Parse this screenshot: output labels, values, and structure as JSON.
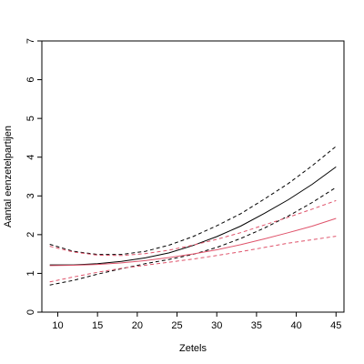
{
  "chart_data": {
    "type": "line",
    "title": "",
    "xlabel": "Zetels",
    "ylabel": "Aantal eenzetelpartijen",
    "xlim": [
      8,
      46
    ],
    "ylim": [
      0,
      7
    ],
    "x_ticks": [
      10,
      15,
      20,
      25,
      30,
      35,
      40,
      45
    ],
    "y_ticks": [
      0,
      1,
      2,
      3,
      4,
      5,
      6,
      7
    ],
    "grid": false,
    "legend": "none",
    "series": [
      {
        "color": "#000000",
        "style": "solid",
        "x": [
          9,
          12,
          15,
          18,
          21,
          24,
          27,
          30,
          33,
          36,
          39,
          42,
          45
        ],
        "y": [
          1.22,
          1.22,
          1.25,
          1.31,
          1.4,
          1.53,
          1.72,
          1.95,
          2.22,
          2.55,
          2.9,
          3.3,
          3.75
        ]
      },
      {
        "color": "#000000",
        "style": "dashed",
        "x": [
          9,
          12,
          15,
          18,
          21,
          24,
          27,
          30,
          33,
          36,
          39,
          42,
          45
        ],
        "y": [
          1.75,
          1.57,
          1.49,
          1.49,
          1.57,
          1.73,
          1.95,
          2.23,
          2.54,
          2.92,
          3.32,
          3.78,
          4.28
        ]
      },
      {
        "color": "#000000",
        "style": "dashed",
        "x": [
          9,
          12,
          15,
          18,
          21,
          24,
          27,
          30,
          33,
          36,
          39,
          42,
          45
        ],
        "y": [
          0.7,
          0.82,
          0.98,
          1.12,
          1.25,
          1.36,
          1.49,
          1.67,
          1.9,
          2.17,
          2.48,
          2.83,
          3.22
        ]
      },
      {
        "color": "#df536b",
        "style": "solid",
        "x": [
          9,
          12,
          15,
          18,
          21,
          24,
          27,
          30,
          33,
          36,
          39,
          42,
          45
        ],
        "y": [
          1.2,
          1.21,
          1.23,
          1.27,
          1.33,
          1.41,
          1.5,
          1.61,
          1.74,
          1.89,
          2.05,
          2.22,
          2.42
        ]
      },
      {
        "color": "#df536b",
        "style": "dashed",
        "x": [
          9,
          12,
          15,
          18,
          21,
          24,
          27,
          30,
          33,
          36,
          39,
          42,
          45
        ],
        "y": [
          1.7,
          1.55,
          1.47,
          1.46,
          1.51,
          1.6,
          1.73,
          1.88,
          2.05,
          2.25,
          2.45,
          2.66,
          2.88
        ]
      },
      {
        "color": "#df536b",
        "style": "dashed",
        "x": [
          9,
          12,
          15,
          18,
          21,
          24,
          27,
          30,
          33,
          36,
          39,
          42,
          45
        ],
        "y": [
          0.78,
          0.91,
          1.03,
          1.13,
          1.21,
          1.29,
          1.37,
          1.46,
          1.56,
          1.67,
          1.78,
          1.87,
          1.96
        ]
      }
    ]
  }
}
